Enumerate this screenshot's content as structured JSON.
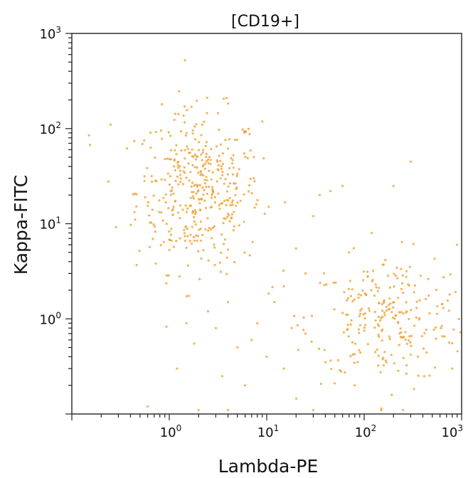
{
  "chart_data": {
    "type": "scatter",
    "title": "[CD19+]",
    "xlabel": "Lambda-PE",
    "ylabel": "Kappa-FITC",
    "x_scale": "log",
    "y_scale": "log",
    "xlim": [
      0.1,
      1000
    ],
    "ylim": [
      0.1,
      1000
    ],
    "x_ticks": [
      {
        "base": "10",
        "exp": "0"
      },
      {
        "base": "10",
        "exp": "1"
      },
      {
        "base": "10",
        "exp": "2"
      },
      {
        "base": "10",
        "exp": "3"
      }
    ],
    "y_ticks": [
      {
        "base": "10",
        "exp": "0"
      },
      {
        "base": "10",
        "exp": "1"
      },
      {
        "base": "10",
        "exp": "2"
      },
      {
        "base": "10",
        "exp": "3"
      }
    ],
    "grid": false,
    "legend": "none",
    "point_color": "#f0a030",
    "clusters": [
      {
        "description": "kappa-positive",
        "x_center": 2.0,
        "y_center": 22,
        "x_log_spread": 0.32,
        "y_log_spread": 0.42,
        "count": 420
      },
      {
        "description": "lambda-positive",
        "x_center": 180,
        "y_center": 1.0,
        "x_log_spread": 0.42,
        "y_log_spread": 0.33,
        "count": 260
      }
    ],
    "scattered_points": [
      [
        0.25,
        110
      ],
      [
        0.15,
        85
      ],
      [
        0.4,
        0.055
      ],
      [
        1.2,
        0.3
      ],
      [
        1.8,
        0.55
      ],
      [
        3.5,
        0.25
      ],
      [
        6,
        0.2
      ],
      [
        7,
        0.6
      ],
      [
        12,
        1.5
      ],
      [
        15,
        0.3
      ],
      [
        20,
        5.5
      ],
      [
        25,
        3.0
      ],
      [
        35,
        20
      ],
      [
        45,
        22
      ],
      [
        60,
        25
      ],
      [
        8,
        0.9
      ],
      [
        30,
        12
      ],
      [
        25,
        0.7
      ],
      [
        18,
        0.8
      ],
      [
        10,
        0.4
      ],
      [
        2.5,
        1.2
      ],
      [
        3,
        0.8
      ],
      [
        4,
        1.5
      ],
      [
        1.5,
        0.9
      ],
      [
        5,
        0.5
      ],
      [
        80,
        0.2
      ],
      [
        120,
        8
      ],
      [
        200,
        25
      ],
      [
        300,
        45
      ],
      [
        800,
        0.3
      ],
      [
        900,
        6
      ],
      [
        15,
        2.2
      ],
      [
        40,
        0.35
      ],
      [
        0.6,
        0.12
      ],
      [
        2,
        0.11
      ],
      [
        30,
        0.11
      ],
      [
        150,
        0.11
      ],
      [
        250,
        0.11
      ],
      [
        4,
        0.11
      ],
      [
        70,
        5
      ]
    ]
  }
}
